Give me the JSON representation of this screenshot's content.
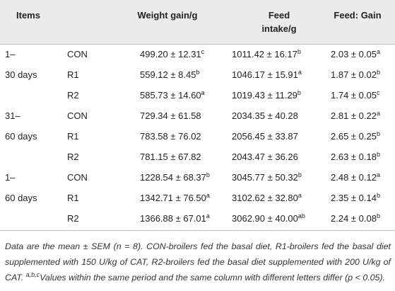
{
  "table": {
    "header": [
      "Items",
      "Weight gain/g",
      [
        "Feed",
        "intake/g"
      ],
      "Feed: Gain"
    ],
    "rows": [
      {
        "period": "1–",
        "group": "CON",
        "cells": [
          {
            "value": "499.20 ± 12.31",
            "sup": "c"
          },
          {
            "value": "1011.42 ± 16.17",
            "sup": "b"
          },
          {
            "value": "2.03 ± 0.05",
            "sup": "a"
          }
        ]
      },
      {
        "period": "30 days",
        "group": "R1",
        "cells": [
          {
            "value": "559.12 ± 8.45",
            "sup": "b"
          },
          {
            "value": "1046.17 ± 15.91",
            "sup": "a"
          },
          {
            "value": "1.87 ± 0.02",
            "sup": "b"
          }
        ]
      },
      {
        "group": "R2",
        "cells": [
          {
            "value": "585.73 ± 14.60",
            "sup": "a"
          },
          {
            "value": "1019.43 ± 11.29",
            "sup": "b"
          },
          {
            "value": "1.74 ± 0.05",
            "sup": "c"
          }
        ]
      },
      {
        "period": "31–",
        "group": "CON",
        "cells": [
          {
            "value": "729.34 ± 61.58"
          },
          {
            "value": "2034.35 ± 40.28"
          },
          {
            "value": "2.81 ± 0.22",
            "sup": "a"
          }
        ]
      },
      {
        "period": "60 days",
        "group": "R1",
        "cells": [
          {
            "value": "783.58 ± 76.02"
          },
          {
            "value": "2056.45 ± 33.87"
          },
          {
            "value": "2.65 ± 0.25",
            "sup": "b"
          }
        ]
      },
      {
        "group": "R2",
        "cells": [
          {
            "value": "781.15 ± 67.82"
          },
          {
            "value": "2043.47 ± 36.26"
          },
          {
            "value": "2.63 ± 0.18",
            "sup": "b"
          }
        ]
      },
      {
        "period": "1–",
        "group": "CON",
        "cells": [
          {
            "value": "1228.54 ± 68.37",
            "sup": "b"
          },
          {
            "value": "3045.77 ± 50.32",
            "sup": "b"
          },
          {
            "value": "2.48 ± 0.12",
            "sup": "a"
          }
        ]
      },
      {
        "period": "60 days",
        "group": "R1",
        "cells": [
          {
            "value": "1342.71 ± 76.50",
            "sup": "a"
          },
          {
            "value": "3102.62 ± 32.80",
            "sup": "a"
          },
          {
            "value": "2.35 ± 0.14",
            "sup": "b"
          }
        ]
      },
      {
        "group": "R2",
        "cells": [
          {
            "value": "1366.88 ± 67.01",
            "sup": "a"
          },
          {
            "value": "3062.90 ± 40.00",
            "sup": "ab"
          },
          {
            "value": "2.24 ± 0.08",
            "sup": "b"
          }
        ]
      }
    ],
    "footnote": {
      "text": "Data are the mean ± SEM (n = 8). CON-broilers fed the basal diet, R1-broilers fed the basal diet supplemented with 150 U/kg of CAT, R2-broilers fed the basal diet supplemented with 200 U/kg of CAT. ",
      "sup": "a,b,c",
      "text2": "Values within the same period and the same column with different letters differ (p < 0.05)."
    }
  }
}
